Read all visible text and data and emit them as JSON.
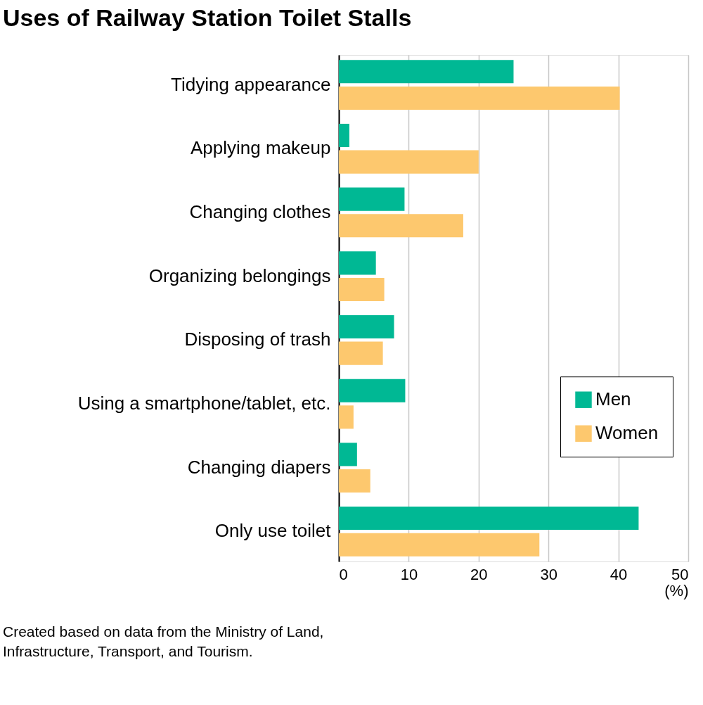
{
  "chart_data": {
    "type": "bar",
    "orientation": "horizontal",
    "title": "Uses of Railway Station Toilet Stalls",
    "xlabel": "(%)",
    "categories": [
      "Tidying appearance",
      "Applying makeup",
      "Changing clothes",
      "Organizing belongings",
      "Disposing of trash",
      "Using a smartphone/tablet, etc.",
      "Changing diapers",
      "Only use toilet"
    ],
    "series": [
      {
        "name": "Men",
        "color": "#00b894",
        "values": [
          25.0,
          1.5,
          9.4,
          5.3,
          7.9,
          9.5,
          2.6,
          42.9
        ]
      },
      {
        "name": "Women",
        "color": "#fdc86e",
        "values": [
          40.2,
          20.0,
          17.8,
          6.5,
          6.3,
          2.1,
          4.5,
          28.7
        ]
      }
    ],
    "xlim": [
      0,
      50
    ],
    "xticks": [
      0,
      10,
      20,
      30,
      40,
      50
    ],
    "grid": "x",
    "legend": "bottom right",
    "annotations": [
      "Created based on data from the Ministry of Land, Infrastructure, Transport, and Tourism."
    ]
  }
}
